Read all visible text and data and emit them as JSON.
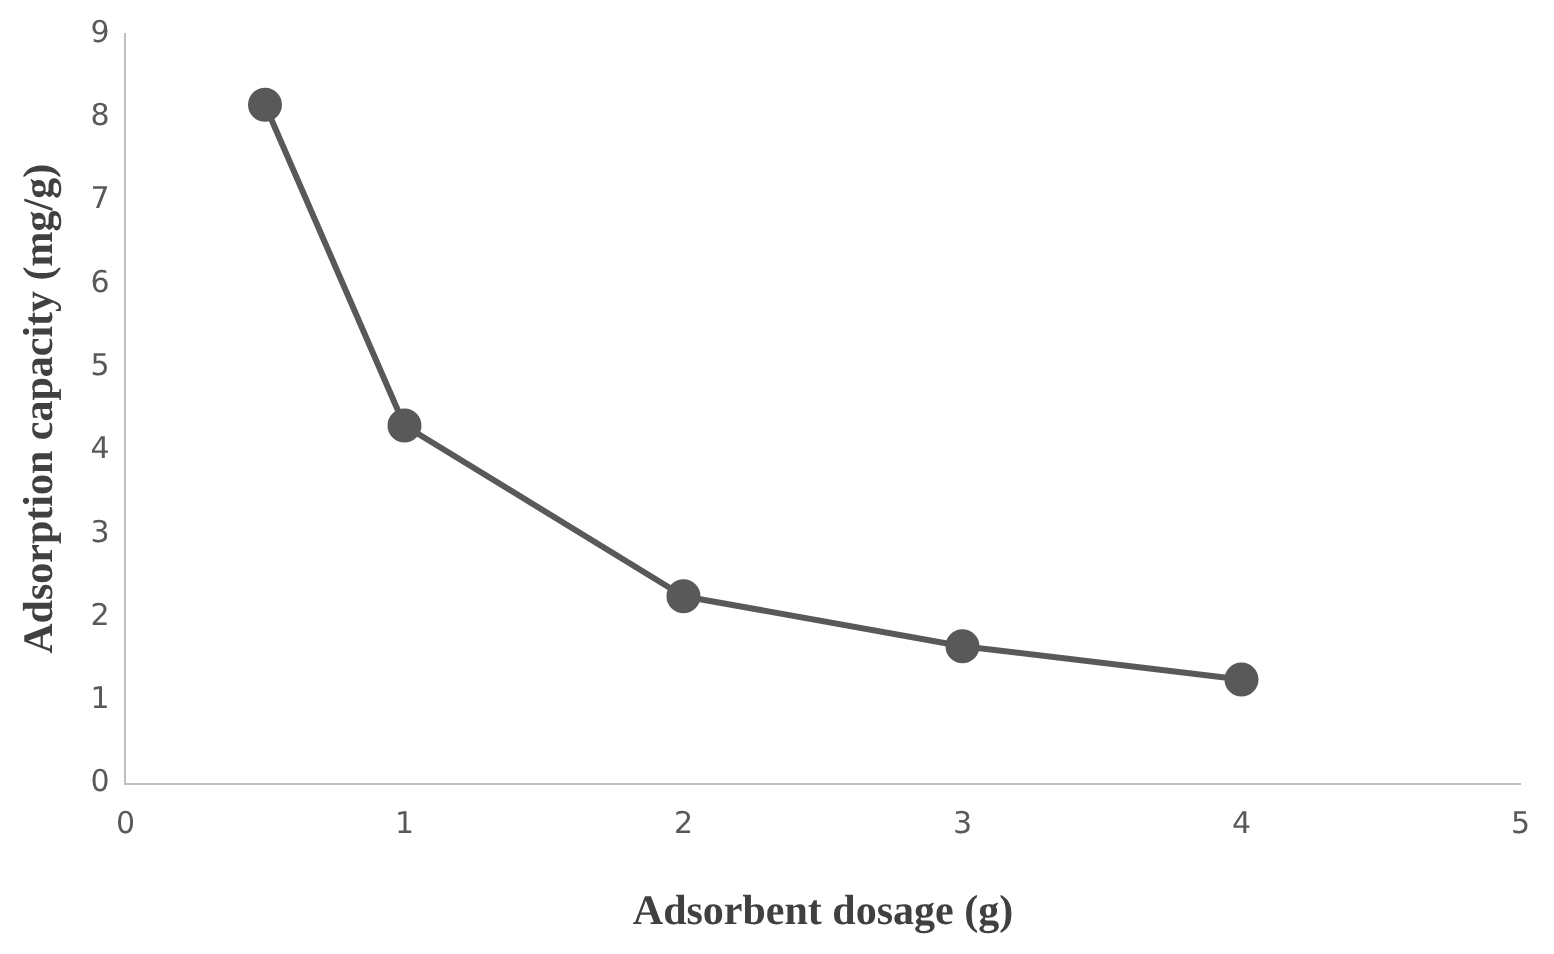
{
  "chart_data": {
    "type": "line",
    "xlabel": "Adsorbent dosage (g)",
    "ylabel": "Adsorption capacity (mg/g)",
    "x": [
      0.5,
      1,
      2,
      3,
      4
    ],
    "series": [
      {
        "color": "#595959",
        "values": [
          8.15,
          4.3,
          2.25,
          1.65,
          1.25
        ]
      }
    ],
    "xlim": [
      0,
      5
    ],
    "xticks": [
      0,
      1,
      2,
      3,
      4,
      5
    ],
    "ylim": [
      0,
      9
    ],
    "yticks": [
      0,
      1,
      2,
      3,
      4,
      5,
      6,
      7,
      8,
      9
    ],
    "grid": false,
    "legend": false,
    "marker": "circle",
    "line_style": "solid"
  }
}
